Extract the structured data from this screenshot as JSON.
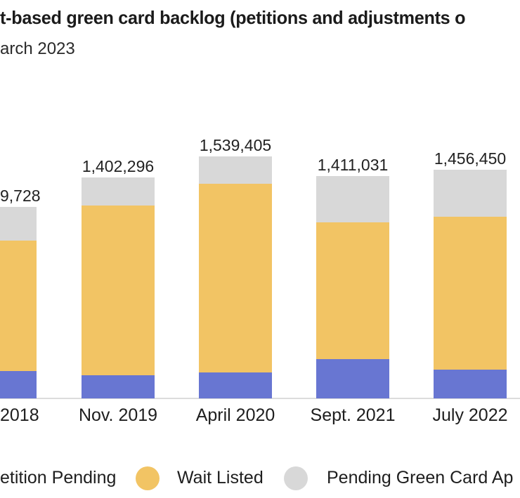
{
  "header": {
    "title": "t-based green card backlog (petitions and adjustments o",
    "subtitle": "arch 2023"
  },
  "chart_data": {
    "type": "bar",
    "stacked": true,
    "title": "t-based green card backlog (petitions and adjustments o",
    "subtitle": "arch 2023",
    "categories": [
      "2018",
      "Nov. 2019",
      "April 2020",
      "Sept. 2021",
      "July 2022"
    ],
    "total_labels": [
      "9,728",
      "1,402,296",
      "1,539,405",
      "1,411,031",
      "1,456,450"
    ],
    "series": [
      {
        "name": "etition Pending",
        "color": "#6876D2",
        "values": [
          174000,
          147000,
          165000,
          250000,
          183000
        ]
      },
      {
        "name": "Wait Listed",
        "color": "#F2C464",
        "values": [
          830000,
          1080000,
          1200000,
          870000,
          973000
        ]
      },
      {
        "name": "Pending Green Card Ap",
        "color": "#D8D8D8",
        "values": [
          214000,
          178000,
          174000,
          294000,
          299000
        ]
      }
    ],
    "ylim": [
      0,
      1600000
    ],
    "grid": false,
    "legend_position": "bottom",
    "axis_line_color": "#dcdcdc",
    "value_label_color": "#222222"
  },
  "legend": {
    "items": [
      {
        "label": "etition Pending",
        "color": "#6876D2"
      },
      {
        "label": "Wait Listed",
        "color": "#F2C464"
      },
      {
        "label": "Pending Green Card Ap",
        "color": "#D8D8D8"
      }
    ]
  }
}
